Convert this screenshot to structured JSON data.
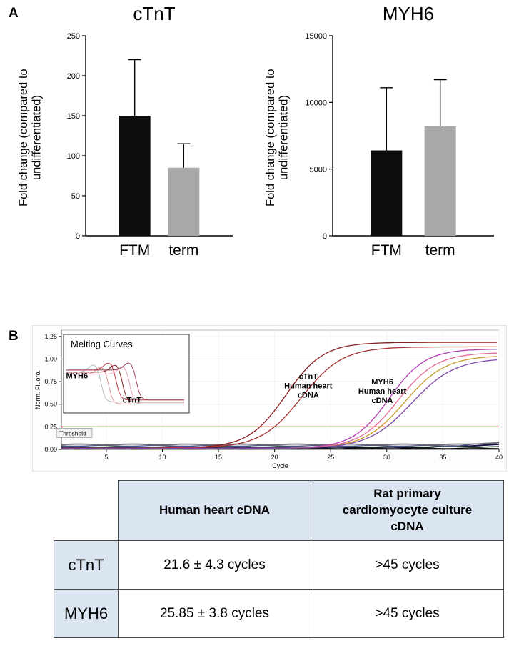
{
  "figure": {
    "panel_a": "A",
    "panel_b": "B"
  },
  "chart_data": [
    {
      "type": "bar",
      "title": "cTnT",
      "ylabel": "Fold change (compared to undifferentiated)",
      "categories": [
        "FTM",
        "term"
      ],
      "values": [
        150,
        85
      ],
      "error_up": [
        70,
        30
      ],
      "bar_colors": [
        "#0d0d0d",
        "#a8a8a8"
      ],
      "ylim": [
        0,
        250
      ],
      "yticks": [
        0,
        50,
        100,
        150,
        200,
        250
      ],
      "grid": false
    },
    {
      "type": "bar",
      "title": "MYH6",
      "ylabel": "Fold change (compared to undifferentiated)",
      "categories": [
        "FTM",
        "term"
      ],
      "values": [
        6400,
        8200
      ],
      "error_up": [
        4700,
        3500
      ],
      "bar_colors": [
        "#0d0d0d",
        "#a8a8a8"
      ],
      "ylim": [
        0,
        15000
      ],
      "yticks": [
        0,
        5000,
        10000,
        15000
      ],
      "grid": false
    },
    {
      "type": "line",
      "subtype": "qpcr_amplification",
      "xlabel": "Cycle",
      "ylabel": "Norm. Fluoro.",
      "xlim": [
        1,
        40
      ],
      "ylim": [
        0,
        1.32
      ],
      "xticks": [
        5,
        10,
        15,
        20,
        25,
        30,
        35,
        40
      ],
      "yticks": [
        0,
        0.25,
        0.5,
        0.75,
        1,
        1.25
      ],
      "threshold": {
        "value": 0.25,
        "label": "Threshold",
        "color": "#cc3333"
      },
      "series": [
        {
          "group": "cTnT Human heart cDNA",
          "color": "#8b1e1e",
          "model": "sigmoid",
          "mid": 21.0,
          "k": 0.6,
          "plateau": 1.17,
          "baseline": 0.015
        },
        {
          "group": "cTnT Human heart cDNA",
          "color": "#a43030",
          "model": "sigmoid",
          "mid": 22.4,
          "k": 0.55,
          "plateau": 1.12,
          "baseline": 0.015
        },
        {
          "group": "MYH6 Human heart cDNA",
          "color": "#b43cb4",
          "model": "sigmoid",
          "mid": 30.2,
          "k": 0.62,
          "plateau": 1.1,
          "baseline": 0.012
        },
        {
          "group": "MYH6 Human heart cDNA",
          "color": "#e2679b",
          "model": "sigmoid",
          "mid": 31.0,
          "k": 0.58,
          "plateau": 1.06,
          "baseline": 0.012
        },
        {
          "group": "MYH6 Human heart cDNA",
          "color": "#c79b2a",
          "model": "sigmoid",
          "mid": 31.6,
          "k": 0.55,
          "plateau": 1.03,
          "baseline": 0.01
        },
        {
          "group": "MYH6 Human heart cDNA",
          "color": "#7d49a8",
          "model": "sigmoid",
          "mid": 32.2,
          "k": 0.52,
          "plateau": 1.0,
          "baseline": 0.01
        }
      ],
      "flat_series": [
        {
          "color": "#14144a",
          "level": 0.022,
          "width": 2.0,
          "bump_at": 33,
          "bump_h": 0.03
        },
        {
          "color": "#000000",
          "level": 0.012,
          "width": 1.4
        },
        {
          "color": "#2e4d2e",
          "level": 0.03,
          "width": 1.2
        },
        {
          "color": "#47518c",
          "level": 0.04,
          "width": 1.2,
          "bump_at": 36,
          "bump_h": 0.035
        },
        {
          "color": "#6b6b6b",
          "level": 0.055,
          "width": 1.8,
          "bump_at": 37,
          "bump_h": 0.02
        },
        {
          "color": "#1a1a1a",
          "level": 0.006,
          "width": 1.0
        }
      ],
      "annotations": [
        {
          "lines": [
            "cTnT",
            "Human heart",
            "cDNA"
          ],
          "x": 23.0,
          "y": 0.78
        },
        {
          "lines": [
            "MYH6",
            "Human heart",
            "cDNA"
          ],
          "x": 29.6,
          "y": 0.72
        }
      ],
      "inset": {
        "title": "Melting Curves",
        "labels": [
          {
            "text": "MYH6",
            "fx": 0.02,
            "fy": 0.56
          },
          {
            "text": "cTnT",
            "fx": 0.47,
            "fy": 0.87
          }
        ],
        "curve_colors": [
          "#b9b9b9",
          "#d49a9a",
          "#c23b4e",
          "#7e1f1f",
          "#e3a3b5",
          "#a04455"
        ],
        "curve_centers": [
          0.3,
          0.36,
          0.42,
          0.47,
          0.53,
          0.58
        ]
      }
    }
  ],
  "table": {
    "header_bg": "#dbe5f1",
    "headers": [
      "",
      "Human heart cDNA",
      "Rat primary cardiomyocyte culture cDNA"
    ],
    "rows": [
      {
        "label": "cTnT",
        "cells": [
          "21.6 ± 4.3 cycles",
          ">45 cycles"
        ]
      },
      {
        "label": "MYH6",
        "cells": [
          "25.85 ± 3.8 cycles",
          ">45 cycles"
        ]
      }
    ]
  }
}
